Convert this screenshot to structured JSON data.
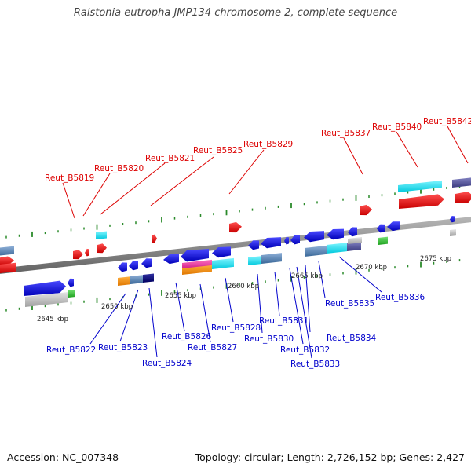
{
  "title": "Ralstonia eutropha JMP134 chromosome 2, complete sequence",
  "footer": {
    "accession": "Accession: NC_007348",
    "topology": "Topology: circular; Length: 2,726,152 bp; Genes: 2,427"
  },
  "scale": {
    "unit": "kbp",
    "ticks": [
      "2645 kbp",
      "2650 kbp",
      "2655 kbp",
      "2660 kbp",
      "2665 kbp",
      "2670 kbp",
      "2675 kbp"
    ]
  },
  "label_colors": {
    "upper": "#dd0000",
    "lower": "#0000cc",
    "tick": "#2a8a2a",
    "axis": "#808080"
  },
  "upper_labels": [
    "Reut_B5819",
    "Reut_B5820",
    "Reut_B5821",
    "Reut_B5825",
    "Reut_B5829",
    "Reut_B5837",
    "Reut_B5840",
    "Reut_B5842"
  ],
  "lower_labels": [
    "Reut_B5822",
    "Reut_B5823",
    "Reut_B5824",
    "Reut_B5826",
    "Reut_B5827",
    "Reut_B5828",
    "Reut_B5830",
    "Reut_B5831",
    "Reut_B5832",
    "Reut_B5833",
    "Reut_B5834",
    "Reut_B5835",
    "Reut_B5836"
  ]
}
